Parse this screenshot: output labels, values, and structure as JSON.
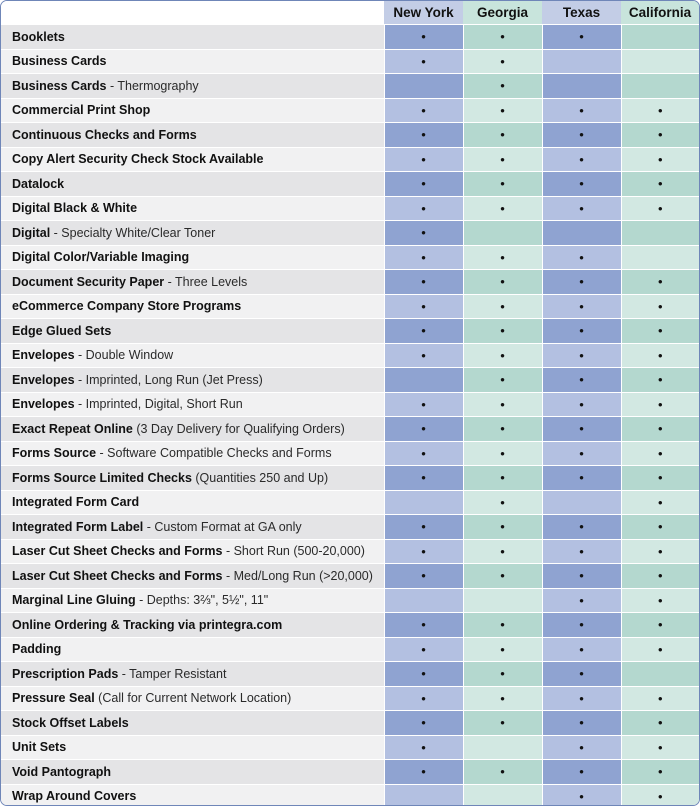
{
  "locations": [
    "New York",
    "Georgia",
    "Texas",
    "California"
  ],
  "bullet": "•",
  "rows": [
    {
      "name": "Booklets",
      "detail": "",
      "marks": [
        true,
        true,
        true,
        false
      ]
    },
    {
      "name": "Business Cards",
      "detail": "",
      "marks": [
        true,
        true,
        false,
        false
      ]
    },
    {
      "name": "Business Cards",
      "detail": " - Thermography",
      "marks": [
        false,
        true,
        false,
        false
      ]
    },
    {
      "name": "Commercial Print Shop",
      "detail": "",
      "marks": [
        true,
        true,
        true,
        true
      ]
    },
    {
      "name": "Continuous Checks and Forms",
      "detail": "",
      "marks": [
        true,
        true,
        true,
        true
      ]
    },
    {
      "name": "Copy Alert Security Check Stock Available",
      "detail": "",
      "marks": [
        true,
        true,
        true,
        true
      ]
    },
    {
      "name": "Datalock",
      "detail": "",
      "marks": [
        true,
        true,
        true,
        true
      ]
    },
    {
      "name": "Digital Black & White",
      "detail": "",
      "marks": [
        true,
        true,
        true,
        true
      ]
    },
    {
      "name": "Digital",
      "detail": " - Specialty White/Clear Toner",
      "marks": [
        true,
        false,
        false,
        false
      ]
    },
    {
      "name": "Digital Color/Variable Imaging",
      "detail": "",
      "marks": [
        true,
        true,
        true,
        false
      ]
    },
    {
      "name": "Document Security Paper",
      "detail": " - Three Levels",
      "marks": [
        true,
        true,
        true,
        true
      ]
    },
    {
      "name": "eCommerce Company Store Programs",
      "detail": "",
      "marks": [
        true,
        true,
        true,
        true
      ]
    },
    {
      "name": "Edge Glued Sets",
      "detail": "",
      "marks": [
        true,
        true,
        true,
        true
      ]
    },
    {
      "name": "Envelopes",
      "detail": " - Double Window",
      "marks": [
        true,
        true,
        true,
        true
      ]
    },
    {
      "name": "Envelopes",
      "detail": " - Imprinted, Long Run (Jet Press)",
      "marks": [
        false,
        true,
        true,
        true
      ]
    },
    {
      "name": "Envelopes",
      "detail": " - Imprinted, Digital, Short Run",
      "marks": [
        true,
        true,
        true,
        true
      ]
    },
    {
      "name": "Exact Repeat Online",
      "detail": " (3 Day Delivery for Qualifying Orders)",
      "marks": [
        true,
        true,
        true,
        true
      ]
    },
    {
      "name": "Forms Source",
      "detail": " - Software Compatible Checks and Forms",
      "marks": [
        true,
        true,
        true,
        true
      ]
    },
    {
      "name": "Forms Source Limited Checks",
      "detail": " (Quantities 250 and Up)",
      "marks": [
        true,
        true,
        true,
        true
      ]
    },
    {
      "name": "Integrated Form Card",
      "detail": "",
      "marks": [
        false,
        true,
        false,
        true
      ]
    },
    {
      "name": "Integrated Form Label",
      "detail": " - Custom Format at GA only",
      "marks": [
        true,
        true,
        true,
        true
      ]
    },
    {
      "name": "Laser Cut Sheet Checks and Forms",
      "detail": " - Short Run (500-20,000)",
      "marks": [
        true,
        true,
        true,
        true
      ]
    },
    {
      "name": "Laser Cut Sheet Checks and Forms",
      "detail": " - Med/Long Run (>20,000)",
      "marks": [
        true,
        true,
        true,
        true
      ]
    },
    {
      "name": "Marginal Line Gluing",
      "detail": " - Depths: 3⅔\", 5½\", 11\"",
      "marks": [
        false,
        false,
        true,
        true
      ]
    },
    {
      "name": "Online Ordering & Tracking via printegra.com",
      "detail": "",
      "marks": [
        true,
        true,
        true,
        true
      ]
    },
    {
      "name": "Padding",
      "detail": "",
      "marks": [
        true,
        true,
        true,
        true
      ]
    },
    {
      "name": "Prescription Pads",
      "detail": " - Tamper Resistant",
      "marks": [
        true,
        true,
        true,
        false
      ]
    },
    {
      "name": "Pressure Seal",
      "detail": " (Call for Current Network Location)",
      "marks": [
        true,
        true,
        true,
        true
      ]
    },
    {
      "name": "Stock Offset Labels",
      "detail": "",
      "marks": [
        true,
        true,
        true,
        true
      ]
    },
    {
      "name": "Unit Sets",
      "detail": "",
      "marks": [
        true,
        false,
        true,
        true
      ]
    },
    {
      "name": "Void Pantograph",
      "detail": "",
      "marks": [
        true,
        true,
        true,
        true
      ]
    },
    {
      "name": "Wrap Around Covers",
      "detail": "",
      "marks": [
        false,
        false,
        true,
        true
      ]
    }
  ]
}
